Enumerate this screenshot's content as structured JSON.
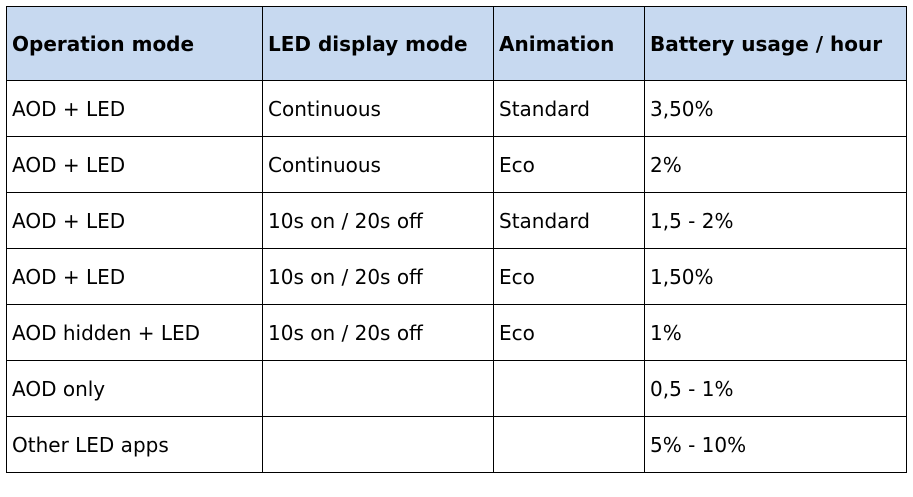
{
  "table": {
    "headers": [
      "Operation mode",
      "LED display mode",
      "Animation",
      "Battery usage / hour"
    ],
    "rows": [
      [
        "AOD + LED",
        "Continuous",
        "Standard",
        "3,50%"
      ],
      [
        "AOD + LED",
        "Continuous",
        "Eco",
        "2%"
      ],
      [
        "AOD + LED",
        "10s on / 20s off",
        "Standard",
        "1,5 - 2%"
      ],
      [
        "AOD + LED",
        "10s on / 20s off",
        "Eco",
        "1,50%"
      ],
      [
        "AOD hidden + LED",
        "10s on / 20s off",
        "Eco",
        "1%"
      ],
      [
        "AOD only",
        "",
        "",
        "0,5 - 1%"
      ],
      [
        "Other LED apps",
        "",
        "",
        "5% - 10%"
      ]
    ]
  },
  "colors": {
    "header_background": "#c7d9f0",
    "border": "#000000"
  }
}
